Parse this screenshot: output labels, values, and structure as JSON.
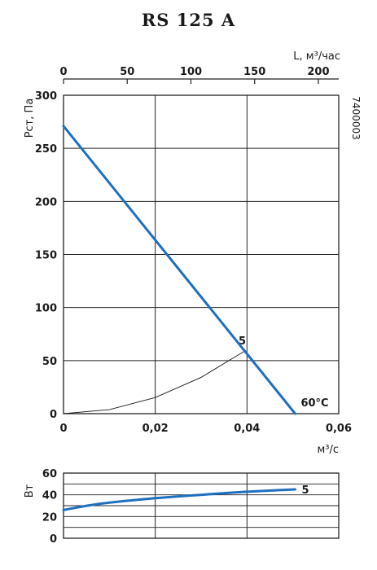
{
  "title": "RS 125 A",
  "chart_data": [
    {
      "type": "line",
      "x_bottom": {
        "label": "м³/с",
        "ticks": [
          "0",
          "0,02",
          "0,04",
          "0,06"
        ],
        "lim": [
          0,
          0.06
        ]
      },
      "x_top": {
        "label": "L, м³/час",
        "ticks": [
          "0",
          "50",
          "100",
          "150",
          "200"
        ],
        "lim": [
          0,
          216
        ]
      },
      "y": {
        "label": "Pст, Па",
        "ticks": [
          "0",
          "50",
          "100",
          "150",
          "200",
          "250",
          "300"
        ],
        "lim": [
          0,
          300
        ]
      },
      "side_label": "7400003",
      "series": [
        {
          "name": "60°C",
          "color": "#1f6fbf",
          "x": [
            0,
            0.0505
          ],
          "y": [
            271,
            0
          ]
        },
        {
          "name": "5",
          "color": "#1a1a1a",
          "x": [
            0,
            0.01,
            0.02,
            0.03,
            0.0395
          ],
          "y": [
            0,
            3.8,
            15.2,
            34.2,
            59
          ]
        }
      ],
      "grid": true
    },
    {
      "type": "line",
      "x_bottom": {
        "lim": [
          0,
          0.06
        ]
      },
      "y": {
        "label": "Вт",
        "ticks": [
          "0",
          "20",
          "40",
          "60"
        ],
        "lim": [
          0,
          60
        ]
      },
      "series": [
        {
          "name": "5",
          "color": "#1f6fbf",
          "x": [
            0,
            0.005,
            0.01,
            0.02,
            0.03,
            0.04,
            0.0505
          ],
          "y": [
            26,
            30,
            33,
            37,
            40,
            43,
            45
          ]
        }
      ],
      "grid": true
    }
  ]
}
